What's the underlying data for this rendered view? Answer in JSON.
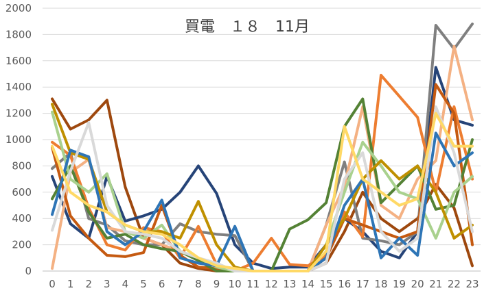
{
  "chart_data": {
    "type": "line",
    "title": "買電　１８　11月",
    "xlabel": "",
    "ylabel": "",
    "categories": [
      "0",
      "1",
      "2",
      "3",
      "4",
      "5",
      "6",
      "7",
      "8",
      "9",
      "10",
      "11",
      "12",
      "13",
      "14",
      "15",
      "16",
      "17",
      "18",
      "19",
      "20",
      "21",
      "22",
      "23"
    ],
    "ylim": [
      0,
      2000
    ],
    "yticks": [
      0,
      200,
      400,
      600,
      800,
      1000,
      1200,
      1400,
      1600,
      1800,
      2000
    ],
    "grid": true,
    "legend": "none",
    "series": [
      {
        "color": "#9E480E",
        "values": [
          1310,
          1080,
          1150,
          1300,
          640,
          250,
          200,
          60,
          20,
          0,
          0,
          0,
          0,
          0,
          0,
          60,
          300,
          600,
          400,
          300,
          400,
          660,
          480,
          40
        ]
      },
      {
        "color": "#264478",
        "values": [
          720,
          360,
          250,
          720,
          380,
          420,
          470,
          600,
          800,
          590,
          200,
          60,
          20,
          30,
          30,
          200,
          400,
          300,
          150,
          100,
          300,
          1550,
          1150,
          1110
        ]
      },
      {
        "color": "#7F7F7F",
        "values": [
          780,
          900,
          400,
          350,
          230,
          200,
          200,
          360,
          300,
          280,
          270,
          0,
          0,
          0,
          0,
          350,
          830,
          250,
          230,
          200,
          300,
          1870,
          1690,
          1880
        ]
      },
      {
        "color": "#F4B183",
        "values": [
          20,
          750,
          850,
          330,
          300,
          250,
          200,
          150,
          80,
          40,
          20,
          0,
          0,
          0,
          0,
          350,
          650,
          1250,
          500,
          400,
          700,
          840,
          1710,
          1150
        ]
      },
      {
        "color": "#ED7D31",
        "values": [
          980,
          880,
          480,
          200,
          160,
          330,
          300,
          100,
          340,
          50,
          0,
          60,
          250,
          50,
          40,
          120,
          450,
          260,
          1490,
          1330,
          1170,
          600,
          1250,
          700
        ]
      },
      {
        "color": "#C55A11",
        "values": [
          940,
          420,
          250,
          120,
          110,
          140,
          500,
          120,
          30,
          20,
          0,
          0,
          0,
          0,
          0,
          100,
          400,
          350,
          300,
          250,
          300,
          1420,
          1200,
          200
        ]
      },
      {
        "color": "#548235",
        "values": [
          550,
          800,
          450,
          250,
          280,
          200,
          170,
          150,
          80,
          0,
          0,
          0,
          0,
          320,
          390,
          520,
          1100,
          1310,
          520,
          660,
          800,
          470,
          500,
          1000
        ]
      },
      {
        "color": "#A9D18E",
        "values": [
          1210,
          700,
          600,
          740,
          300,
          250,
          350,
          150,
          100,
          30,
          0,
          0,
          0,
          0,
          0,
          200,
          600,
          980,
          800,
          600,
          550,
          250,
          600,
          720
        ]
      },
      {
        "color": "#BF9000",
        "values": [
          1270,
          900,
          850,
          450,
          350,
          300,
          300,
          250,
          530,
          200,
          30,
          0,
          0,
          0,
          0,
          200,
          400,
          700,
          840,
          700,
          800,
          600,
          250,
          350
        ]
      },
      {
        "color": "#2E75B6",
        "values": [
          430,
          920,
          870,
          300,
          200,
          300,
          540,
          100,
          60,
          40,
          340,
          0,
          0,
          0,
          0,
          100,
          500,
          700,
          100,
          250,
          120,
          1050,
          800,
          900
        ]
      },
      {
        "color": "#D9D9D9",
        "values": [
          310,
          760,
          1130,
          500,
          300,
          280,
          250,
          150,
          100,
          60,
          0,
          0,
          0,
          0,
          0,
          60,
          700,
          900,
          300,
          150,
          250,
          1250,
          900,
          300
        ]
      },
      {
        "color": "#FFD966",
        "values": [
          950,
          600,
          500,
          450,
          350,
          300,
          280,
          200,
          100,
          40,
          20,
          0,
          0,
          0,
          0,
          150,
          1100,
          700,
          600,
          500,
          550,
          1200,
          950,
          950
        ]
      }
    ]
  }
}
